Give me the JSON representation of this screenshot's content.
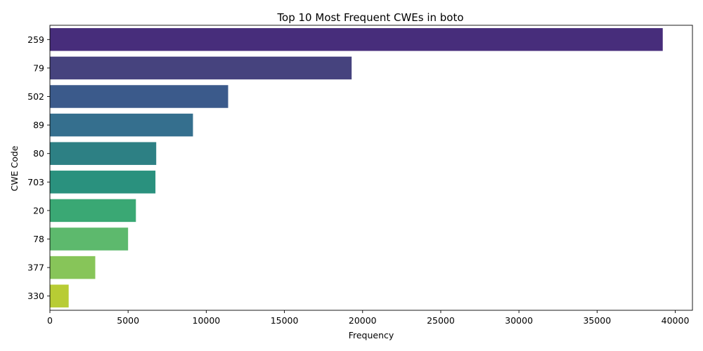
{
  "chart_data": {
    "type": "bar",
    "orientation": "horizontal",
    "title": "Top 10 Most Frequent CWEs in boto",
    "xlabel": "Frequency",
    "ylabel": "CWE Code",
    "categories": [
      "259",
      "79",
      "502",
      "89",
      "80",
      "703",
      "20",
      "78",
      "377",
      "330"
    ],
    "values": [
      39200,
      19300,
      11400,
      9150,
      6800,
      6750,
      5500,
      5000,
      2900,
      1200
    ],
    "colors": [
      "#472d7b",
      "#46437e",
      "#3b5a8b",
      "#356f8e",
      "#2d8084",
      "#2a917e",
      "#3aa874",
      "#5db96d",
      "#87c559",
      "#b8cc34"
    ],
    "xlim": [
      0,
      41100
    ],
    "xticks": [
      0,
      5000,
      10000,
      15000,
      20000,
      25000,
      30000,
      35000,
      40000
    ],
    "grid": false,
    "legend": "none"
  }
}
